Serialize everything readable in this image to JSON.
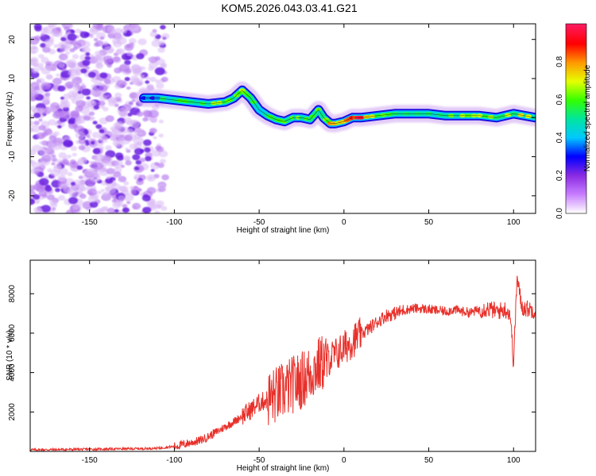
{
  "title": "KOM5.2026.043.03.41.G21",
  "colors": {
    "snr_line": "#e8302a",
    "track_core": "#e8203a",
    "track_outer": "#1a10e0",
    "noise": "#7a2ae8"
  },
  "chart_data": [
    {
      "type": "heatmap",
      "xlabel": "Height of straight line (km)",
      "ylabel": "Frequency (Hz)",
      "xlim": [
        -185,
        113
      ],
      "ylim": [
        -24.5,
        24
      ],
      "xticks": [
        -150,
        -100,
        -50,
        0,
        50,
        100
      ],
      "yticks": [
        -20,
        -10,
        0,
        10,
        20
      ],
      "colorbar": {
        "label": "Normalized spectral amplitude",
        "range": [
          0,
          1
        ],
        "ticks": [
          "0.0",
          "0.2",
          "0.4",
          "0.6",
          "0.8"
        ],
        "tick_values": [
          0,
          0.2,
          0.4,
          0.6,
          0.8
        ],
        "colormap": [
          "#ffffff",
          "#c77dff",
          "#8a2be2",
          "#0000ff",
          "#00c8ff",
          "#00e5a0",
          "#33ff00",
          "#e6ff00",
          "#ff9900",
          "#ff0000",
          "#ff1a5e"
        ]
      },
      "noise_region": {
        "x_from": -185,
        "x_to": -105,
        "y_from": -24.5,
        "y_to": 24
      },
      "track": {
        "x": [
          -118,
          -110,
          -100,
          -90,
          -80,
          -70,
          -65,
          -60,
          -55,
          -50,
          -45,
          -40,
          -35,
          -30,
          -25,
          -20,
          -15,
          -12,
          -8,
          -5,
          0,
          5,
          10,
          20,
          30,
          40,
          50,
          60,
          70,
          80,
          90,
          100,
          113
        ],
        "freq": [
          5,
          5,
          4.5,
          4,
          3.5,
          4,
          5,
          7,
          5,
          2,
          0.5,
          -0.5,
          -1,
          0,
          0,
          -0.5,
          2,
          0,
          -1.5,
          -1.5,
          -1,
          0,
          0,
          0.5,
          1,
          1,
          1,
          0.5,
          0.5,
          0.5,
          0,
          1,
          0
        ],
        "amplitude": [
          0.2,
          0.45,
          0.5,
          0.55,
          0.55,
          0.6,
          0.55,
          0.75,
          0.55,
          0.45,
          0.5,
          0.55,
          0.55,
          0.6,
          0.55,
          0.6,
          0.55,
          0.55,
          0.75,
          0.75,
          0.7,
          0.9,
          0.95,
          0.6,
          0.5,
          0.55,
          0.55,
          0.55,
          0.6,
          0.65,
          0.6,
          0.6,
          0.8
        ]
      }
    },
    {
      "type": "line",
      "xlabel": "Height of straight line (km)",
      "ylabel": "SNR (10 * v/v)",
      "xlim": [
        -185,
        113
      ],
      "ylim": [
        0,
        9700
      ],
      "xticks": [
        -150,
        -100,
        -50,
        0,
        50,
        100
      ],
      "yticks": [
        2000,
        4000,
        6000,
        8000
      ],
      "series": [
        {
          "name": "SNR",
          "x": [
            -185,
            -150,
            -120,
            -110,
            -100,
            -95,
            -90,
            -85,
            -80,
            -75,
            -70,
            -65,
            -60,
            -55,
            -50,
            -45,
            -40,
            -35,
            -30,
            -25,
            -20,
            -15,
            -10,
            -5,
            0,
            5,
            10,
            15,
            20,
            25,
            30,
            35,
            40,
            45,
            50,
            55,
            60,
            65,
            70,
            75,
            80,
            85,
            90,
            95,
            98,
            100,
            102,
            105,
            113
          ],
          "y": [
            80,
            110,
            140,
            160,
            250,
            350,
            450,
            550,
            750,
            1000,
            1250,
            1500,
            1800,
            2100,
            2450,
            2650,
            2850,
            3100,
            3400,
            3600,
            3950,
            4350,
            4650,
            4900,
            5250,
            5600,
            5950,
            6250,
            6600,
            6900,
            7000,
            7150,
            7250,
            7250,
            7200,
            7150,
            7100,
            7200,
            7100,
            7050,
            7200,
            7250,
            7100,
            7200,
            7000,
            4500,
            8800,
            7300,
            7150
          ]
        }
      ]
    }
  ]
}
